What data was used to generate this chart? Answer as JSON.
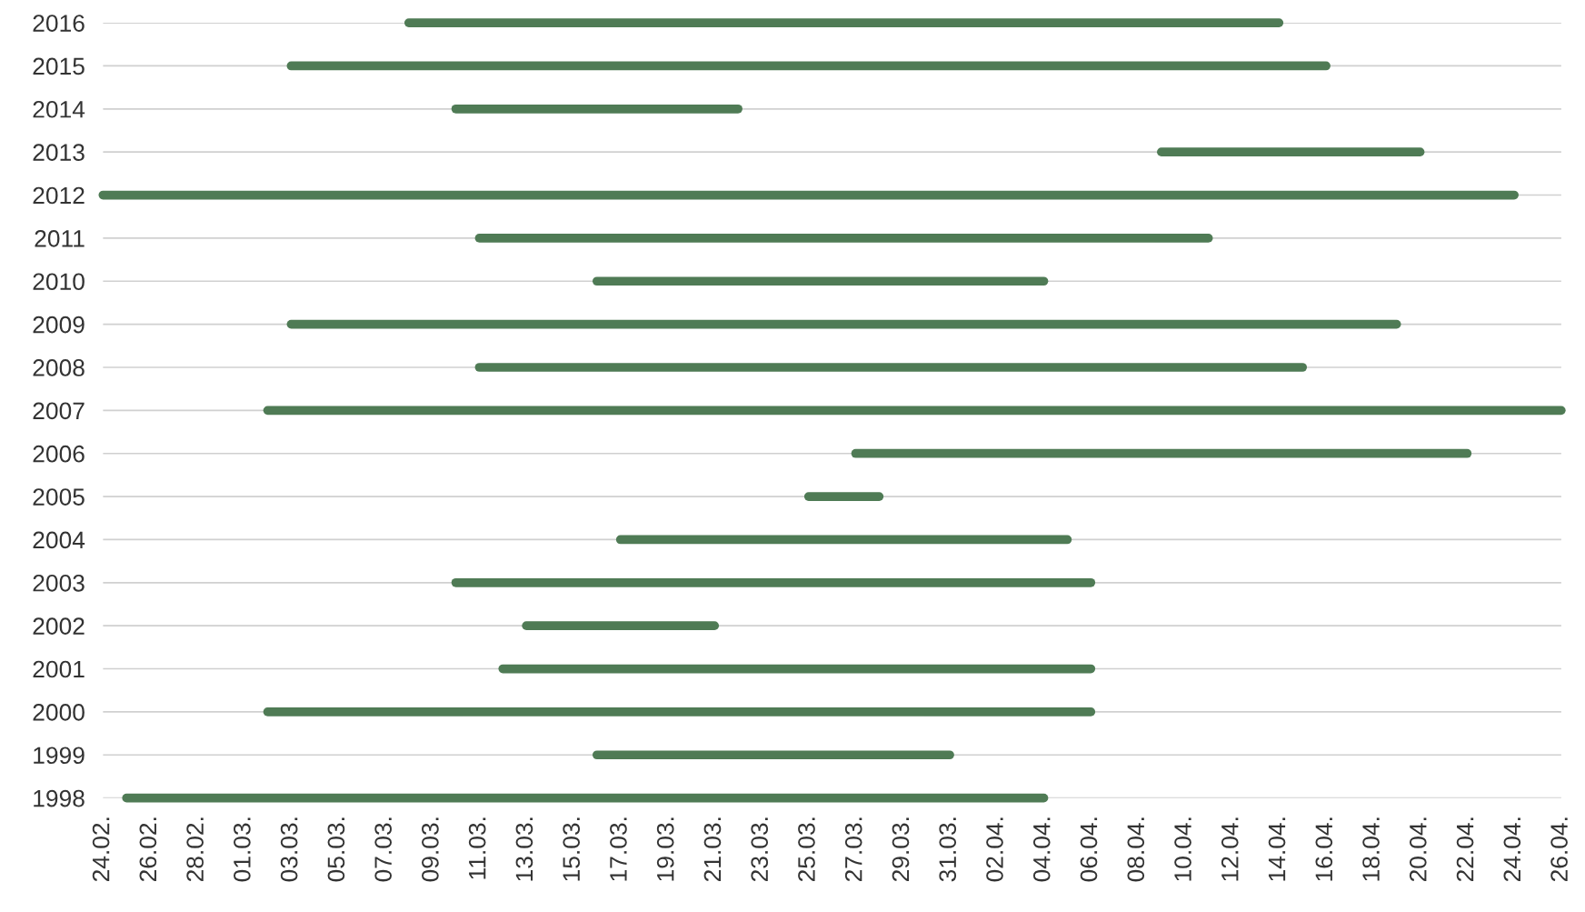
{
  "chart_data": {
    "type": "line",
    "marker": "none",
    "line_style": "solid",
    "series": [
      {
        "color": "#4f7b55",
        "x": [
          "2016-03-08",
          "2016-04-14"
        ],
        "values": [
          2016,
          2016
        ]
      },
      {
        "color": "#4f7b55",
        "x": [
          "2016-03-03",
          "2016-04-16"
        ],
        "values": [
          2015,
          2015
        ]
      },
      {
        "color": "#4f7b55",
        "x": [
          "2016-03-10",
          "2016-03-22"
        ],
        "values": [
          2014,
          2014
        ]
      },
      {
        "color": "#4f7b55",
        "x": [
          "2016-04-09",
          "2016-04-20"
        ],
        "values": [
          2013,
          2013
        ]
      },
      {
        "color": "#4f7b55",
        "x": [
          "2016-02-24",
          "2016-04-24"
        ],
        "values": [
          2012,
          2012
        ]
      },
      {
        "color": "#4f7b55",
        "x": [
          "2016-03-11",
          "2016-04-11"
        ],
        "values": [
          2011,
          2011
        ]
      },
      {
        "color": "#4f7b55",
        "x": [
          "2016-03-16",
          "2016-04-04"
        ],
        "values": [
          2010,
          2010
        ]
      },
      {
        "color": "#4f7b55",
        "x": [
          "2016-03-03",
          "2016-04-19"
        ],
        "values": [
          2009,
          2009
        ]
      },
      {
        "color": "#4f7b55",
        "x": [
          "2016-03-11",
          "2016-04-15"
        ],
        "values": [
          2008,
          2008
        ]
      },
      {
        "color": "#4f7b55",
        "x": [
          "2016-03-02",
          "2016-04-26"
        ],
        "values": [
          2007,
          2007
        ]
      },
      {
        "color": "#4f7b55",
        "x": [
          "2016-03-27",
          "2016-04-22"
        ],
        "values": [
          2006,
          2006
        ]
      },
      {
        "color": "#4f7b55",
        "x": [
          "2016-03-25",
          "2016-03-28"
        ],
        "values": [
          2005,
          2005
        ]
      },
      {
        "color": "#4f7b55",
        "x": [
          "2016-03-17",
          "2016-04-05"
        ],
        "values": [
          2004,
          2004
        ]
      },
      {
        "color": "#4f7b55",
        "x": [
          "2016-03-10",
          "2016-04-06"
        ],
        "values": [
          2003,
          2003
        ]
      },
      {
        "color": "#4f7b55",
        "x": [
          "2016-03-13",
          "2016-03-21"
        ],
        "values": [
          2002,
          2002
        ]
      },
      {
        "color": "#4f7b55",
        "x": [
          "2016-03-12",
          "2016-04-06"
        ],
        "values": [
          2001,
          2001
        ]
      },
      {
        "color": "#4f7b55",
        "x": [
          "2016-03-02",
          "2016-04-06"
        ],
        "values": [
          2000,
          2000
        ]
      },
      {
        "color": "#4f7b55",
        "x": [
          "2016-03-16",
          "2016-03-31"
        ],
        "values": [
          1999,
          1999
        ]
      },
      {
        "color": "#4f7b55",
        "x": [
          "2016-02-25",
          "2016-04-04"
        ],
        "values": [
          1998,
          1998
        ]
      }
    ],
    "ylim": [
      1998,
      2016
    ],
    "yticks": [
      1998,
      1999,
      2000,
      2001,
      2002,
      2003,
      2004,
      2005,
      2006,
      2007,
      2008,
      2009,
      2010,
      2011,
      2012,
      2013,
      2014,
      2015,
      2016
    ],
    "xlim": [
      "2016-02-24",
      "2016-04-26"
    ],
    "xticks": [
      {
        "value": "2016-02-24",
        "label": "24.02."
      },
      {
        "value": "2016-02-26",
        "label": "26.02."
      },
      {
        "value": "2016-02-28",
        "label": "28.02."
      },
      {
        "value": "2016-03-01",
        "label": "01.03."
      },
      {
        "value": "2016-03-03",
        "label": "03.03."
      },
      {
        "value": "2016-03-05",
        "label": "05.03."
      },
      {
        "value": "2016-03-07",
        "label": "07.03."
      },
      {
        "value": "2016-03-09",
        "label": "09.03."
      },
      {
        "value": "2016-03-11",
        "label": "11.03."
      },
      {
        "value": "2016-03-13",
        "label": "13.03."
      },
      {
        "value": "2016-03-15",
        "label": "15.03."
      },
      {
        "value": "2016-03-17",
        "label": "17.03."
      },
      {
        "value": "2016-03-19",
        "label": "19.03."
      },
      {
        "value": "2016-03-21",
        "label": "21.03."
      },
      {
        "value": "2016-03-23",
        "label": "23.03."
      },
      {
        "value": "2016-03-25",
        "label": "25.03."
      },
      {
        "value": "2016-03-27",
        "label": "27.03."
      },
      {
        "value": "2016-03-29",
        "label": "29.03."
      },
      {
        "value": "2016-03-31",
        "label": "31.03."
      },
      {
        "value": "2016-04-02",
        "label": "02.04."
      },
      {
        "value": "2016-04-04",
        "label": "04.04."
      },
      {
        "value": "2016-04-06",
        "label": "06.04."
      },
      {
        "value": "2016-04-08",
        "label": "08.04."
      },
      {
        "value": "2016-04-10",
        "label": "10.04."
      },
      {
        "value": "2016-04-12",
        "label": "12.04."
      },
      {
        "value": "2016-04-14",
        "label": "14.04."
      },
      {
        "value": "2016-04-16",
        "label": "16.04."
      },
      {
        "value": "2016-04-18",
        "label": "18.04."
      },
      {
        "value": "2016-04-20",
        "label": "20.04."
      },
      {
        "value": "2016-04-22",
        "label": "22.04."
      },
      {
        "value": "2016-04-24",
        "label": "24.04."
      },
      {
        "value": "2016-04-26",
        "label": "26.04."
      }
    ],
    "grid": "y"
  }
}
